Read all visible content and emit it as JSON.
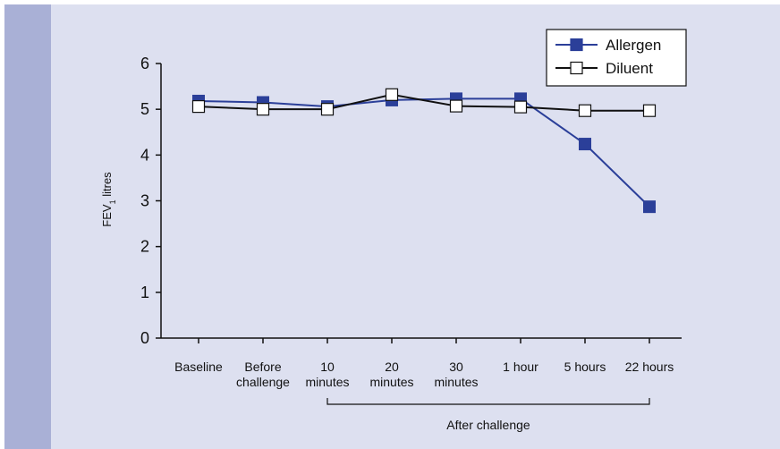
{
  "chart_data": {
    "type": "line",
    "categories": [
      [
        "Baseline"
      ],
      [
        "Before",
        "challenge"
      ],
      [
        "10",
        "minutes"
      ],
      [
        "20",
        "minutes"
      ],
      [
        "30",
        "minutes"
      ],
      [
        "1 hour"
      ],
      [
        "5 hours"
      ],
      [
        "22 hours"
      ]
    ],
    "series": [
      {
        "name": "Allergen",
        "values": [
          5.18,
          5.15,
          5.06,
          5.2,
          5.23,
          5.23,
          4.24,
          2.87
        ],
        "color": "#2b3f99",
        "marker": "filled-square"
      },
      {
        "name": "Diluent",
        "values": [
          5.06,
          5.0,
          5.0,
          5.32,
          5.07,
          5.05,
          4.97,
          4.97
        ],
        "color": "#111111",
        "marker": "open-square"
      }
    ],
    "ylabel_main": "FEV",
    "ylabel_sub": "1",
    "ylabel_unit": "litres",
    "yticks": [
      0,
      1,
      2,
      3,
      4,
      5,
      6
    ],
    "ylim": [
      0,
      6
    ],
    "grid": false,
    "legend_position": "top-right",
    "annotation": "After challenge",
    "annotation_span": [
      "10 minutes",
      "22 hours"
    ]
  }
}
